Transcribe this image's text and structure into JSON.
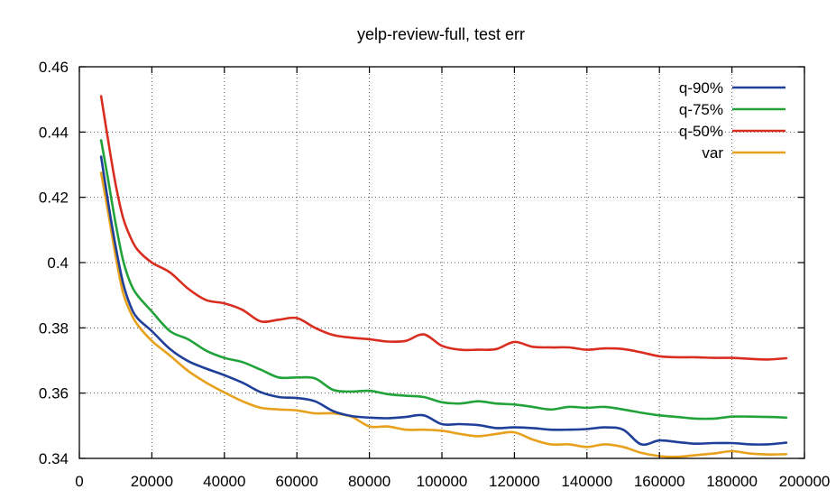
{
  "chart_data": {
    "type": "line",
    "title": "yelp-review-full, test err",
    "xlabel": "",
    "ylabel": "",
    "xlim": [
      0,
      200000
    ],
    "ylim": [
      0.34,
      0.46
    ],
    "x_ticks": [
      0,
      20000,
      40000,
      60000,
      80000,
      100000,
      120000,
      140000,
      160000,
      180000,
      200000
    ],
    "x_tick_labels": [
      "0",
      "20000",
      "40000",
      "60000",
      "80000",
      "100000",
      "120000",
      "140000",
      "160000",
      "180000",
      "200000"
    ],
    "y_ticks": [
      0.34,
      0.36,
      0.38,
      0.4,
      0.42,
      0.44,
      0.46
    ],
    "y_tick_labels": [
      "0.34",
      "0.36",
      "0.38",
      "0.4",
      "0.42",
      "0.44",
      "0.46"
    ],
    "grid": true,
    "legend_position": "top-right",
    "series": [
      {
        "name": "q-90%",
        "color": "#1f3f99",
        "x": [
          6000,
          8000,
          10000,
          12000,
          14000,
          16000,
          20000,
          25000,
          30000,
          35000,
          40000,
          45000,
          50000,
          55000,
          60000,
          65000,
          70000,
          75000,
          80000,
          85000,
          90000,
          95000,
          100000,
          105000,
          110000,
          115000,
          120000,
          125000,
          130000,
          135000,
          140000,
          145000,
          150000,
          155000,
          160000,
          165000,
          170000,
          175000,
          180000,
          185000,
          190000,
          195000
        ],
        "y": [
          0.4325,
          0.418,
          0.405,
          0.394,
          0.387,
          0.383,
          0.379,
          0.3735,
          0.3698,
          0.3675,
          0.3655,
          0.3632,
          0.3603,
          0.3588,
          0.3585,
          0.3575,
          0.3545,
          0.353,
          0.3525,
          0.3523,
          0.3527,
          0.3532,
          0.3505,
          0.3505,
          0.3502,
          0.3493,
          0.3495,
          0.3493,
          0.3488,
          0.3488,
          0.349,
          0.3495,
          0.3488,
          0.3443,
          0.3455,
          0.345,
          0.3445,
          0.3447,
          0.3447,
          0.3443,
          0.3443,
          0.3448
        ]
      },
      {
        "name": "q-75%",
        "color": "#22a33a",
        "x": [
          6000,
          8000,
          10000,
          12000,
          14000,
          16000,
          20000,
          25000,
          30000,
          35000,
          40000,
          45000,
          50000,
          55000,
          60000,
          65000,
          70000,
          75000,
          80000,
          85000,
          90000,
          95000,
          100000,
          105000,
          110000,
          115000,
          120000,
          125000,
          130000,
          135000,
          140000,
          145000,
          150000,
          155000,
          160000,
          165000,
          170000,
          175000,
          180000,
          185000,
          190000,
          195000
        ],
        "y": [
          0.4375,
          0.425,
          0.412,
          0.401,
          0.394,
          0.39,
          0.385,
          0.379,
          0.3765,
          0.373,
          0.3708,
          0.3695,
          0.3672,
          0.3648,
          0.3648,
          0.3645,
          0.361,
          0.3605,
          0.3607,
          0.3597,
          0.3592,
          0.3588,
          0.3572,
          0.3568,
          0.3575,
          0.3568,
          0.3565,
          0.3558,
          0.355,
          0.3558,
          0.3555,
          0.3558,
          0.355,
          0.354,
          0.3532,
          0.3527,
          0.3522,
          0.3522,
          0.3528,
          0.3528,
          0.3527,
          0.3525
        ]
      },
      {
        "name": "q-50%",
        "color": "#d92d20",
        "x": [
          6000,
          8000,
          10000,
          12000,
          14000,
          16000,
          20000,
          25000,
          30000,
          35000,
          40000,
          45000,
          50000,
          55000,
          60000,
          65000,
          70000,
          75000,
          80000,
          85000,
          90000,
          95000,
          100000,
          105000,
          110000,
          115000,
          120000,
          125000,
          130000,
          135000,
          140000,
          145000,
          150000,
          155000,
          160000,
          165000,
          170000,
          175000,
          180000,
          185000,
          190000,
          195000
        ],
        "y": [
          0.451,
          0.437,
          0.424,
          0.414,
          0.408,
          0.404,
          0.4,
          0.397,
          0.392,
          0.3885,
          0.3875,
          0.3855,
          0.382,
          0.3825,
          0.383,
          0.38,
          0.3778,
          0.377,
          0.3765,
          0.3758,
          0.376,
          0.378,
          0.3745,
          0.3733,
          0.3733,
          0.3735,
          0.3757,
          0.3742,
          0.374,
          0.374,
          0.3733,
          0.3737,
          0.3735,
          0.3725,
          0.3713,
          0.371,
          0.371,
          0.3708,
          0.3708,
          0.3705,
          0.3703,
          0.3707
        ]
      },
      {
        "name": "var",
        "color": "#e8a11d",
        "x": [
          6000,
          8000,
          10000,
          12000,
          14000,
          16000,
          20000,
          25000,
          30000,
          35000,
          40000,
          45000,
          50000,
          55000,
          60000,
          65000,
          70000,
          75000,
          80000,
          85000,
          90000,
          95000,
          100000,
          105000,
          110000,
          115000,
          120000,
          125000,
          130000,
          135000,
          140000,
          145000,
          150000,
          155000,
          160000,
          165000,
          170000,
          175000,
          180000,
          185000,
          190000,
          195000
        ],
        "y": [
          0.4275,
          0.415,
          0.402,
          0.391,
          0.385,
          0.381,
          0.376,
          0.3715,
          0.3668,
          0.3632,
          0.3602,
          0.3575,
          0.3555,
          0.355,
          0.3547,
          0.3538,
          0.3538,
          0.3528,
          0.3498,
          0.3498,
          0.3488,
          0.3488,
          0.3485,
          0.3475,
          0.3468,
          0.3475,
          0.348,
          0.3458,
          0.3443,
          0.3443,
          0.3435,
          0.3443,
          0.3435,
          0.3417,
          0.3407,
          0.3405,
          0.341,
          0.3415,
          0.3422,
          0.3415,
          0.3412,
          0.3413
        ]
      }
    ]
  }
}
